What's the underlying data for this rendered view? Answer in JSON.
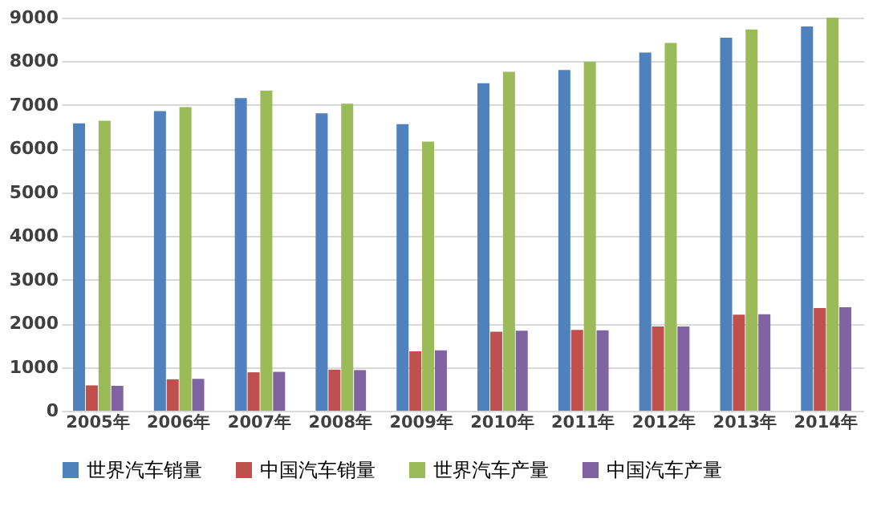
{
  "chart_data": {
    "type": "bar",
    "categories": [
      "2005年",
      "2006年",
      "2007年",
      "2008年",
      "2009年",
      "2010年",
      "2011年",
      "2012年",
      "2013年",
      "2014年"
    ],
    "series": [
      {
        "name": "世界汽车销量",
        "color": "#4f81bd",
        "values": [
          6580,
          6860,
          7160,
          6810,
          6560,
          7500,
          7800,
          8200,
          8540,
          8800
        ]
      },
      {
        "name": "中国汽车销量",
        "color": "#c0504d",
        "values": [
          580,
          720,
          880,
          940,
          1360,
          1810,
          1850,
          1930,
          2200,
          2350
        ]
      },
      {
        "name": "世界汽车产量",
        "color": "#9bbb59",
        "values": [
          6640,
          6950,
          7330,
          7030,
          6160,
          7760,
          7990,
          8420,
          8730,
          9000
        ]
      },
      {
        "name": "中国汽车产量",
        "color": "#8064a2",
        "values": [
          570,
          730,
          890,
          930,
          1380,
          1830,
          1840,
          1930,
          2210,
          2370
        ]
      }
    ],
    "ylim": [
      0,
      9000
    ],
    "yticks": [
      0,
      1000,
      2000,
      3000,
      4000,
      5000,
      6000,
      7000,
      8000,
      9000
    ],
    "grid": "y",
    "legend": "bottom"
  }
}
